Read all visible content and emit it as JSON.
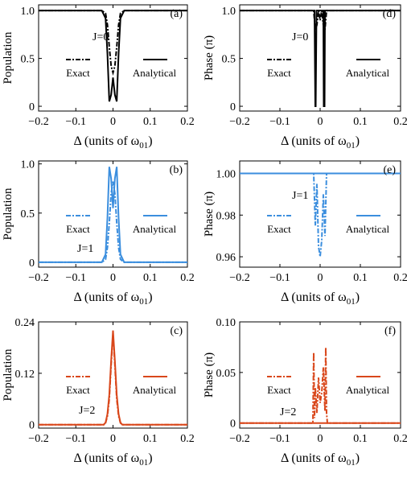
{
  "chart_data": [
    {
      "panel": "(a)",
      "type": "line",
      "ylabel": "Population",
      "xlabel_prefix": "Δ (units of ω",
      "xlabel_sub": "01",
      "xlabel_suffix": ")",
      "xlim": [
        -0.2,
        0.2
      ],
      "ylim": [
        -0.05,
        1.06
      ],
      "xticks": [
        "−0.2",
        "−0.1",
        "0",
        "0.1",
        "0.2"
      ],
      "yticks": [
        {
          "v": 0,
          "label": "0"
        },
        {
          "v": 0.5,
          "label": "0.5"
        },
        {
          "v": 1,
          "label": "1.0"
        }
      ],
      "annotation": "J=0",
      "color": "#000000",
      "legend": {
        "exact": "Exact",
        "analytical": "Analytical"
      },
      "series": [
        {
          "name": "Exact",
          "style": "dashdot",
          "x": [
            -0.2,
            -0.03,
            -0.02,
            -0.015,
            -0.01,
            -0.005,
            0,
            0.005,
            0.01,
            0.015,
            0.02,
            0.03,
            0.2
          ],
          "y": [
            1,
            1,
            0.97,
            0.85,
            0.62,
            0.42,
            0.35,
            0.42,
            0.62,
            0.85,
            0.97,
            1,
            1
          ]
        },
        {
          "name": "Analytical",
          "style": "solid",
          "x": [
            -0.2,
            -0.03,
            -0.02,
            -0.015,
            -0.01,
            -0.005,
            0,
            0.005,
            0.01,
            0.015,
            0.02,
            0.03,
            0.2
          ],
          "y": [
            1,
            1,
            0.92,
            0.55,
            0.05,
            0.12,
            0.3,
            0.12,
            0.05,
            0.55,
            0.92,
            1,
            1
          ]
        }
      ]
    },
    {
      "panel": "(d)",
      "type": "line",
      "ylabel": "Phase (π)",
      "xlabel_prefix": "Δ (units of ω",
      "xlabel_sub": "01",
      "xlabel_suffix": ")",
      "xlim": [
        -0.2,
        0.2
      ],
      "ylim": [
        -0.05,
        1.06
      ],
      "xticks": [
        "−0.2",
        "−0.1",
        "0",
        "0.1",
        "0.2"
      ],
      "yticks": [
        {
          "v": 0,
          "label": "0"
        },
        {
          "v": 0.5,
          "label": "0.5"
        },
        {
          "v": 1,
          "label": "1.0"
        }
      ],
      "annotation": "J=0",
      "color": "#000000",
      "legend": {
        "exact": "Exact",
        "analytical": "Analytical"
      },
      "series": [
        {
          "name": "Exact",
          "style": "dashdot",
          "x": [
            -0.2,
            -0.016,
            -0.012,
            -0.008,
            -0.004,
            0,
            0.004,
            0.008,
            0.012,
            0.016,
            0.2
          ],
          "y": [
            1,
            1,
            0.8,
            0.85,
            1,
            0.9,
            1,
            0.85,
            0.8,
            1,
            1
          ]
        },
        {
          "name": "Analytical",
          "style": "solid",
          "x": [
            -0.2,
            -0.014,
            -0.012,
            -0.011,
            -0.009,
            -0.008,
            0.008,
            0.009,
            0.011,
            0.012,
            0.014,
            0.2
          ],
          "y": [
            1,
            1,
            0,
            0,
            1,
            1,
            1,
            0,
            0,
            1,
            1,
            1
          ]
        }
      ]
    },
    {
      "panel": "(b)",
      "type": "line",
      "ylabel": "Population",
      "xlabel_prefix": "Δ (units of ω",
      "xlabel_sub": "01",
      "xlabel_suffix": ")",
      "xlim": [
        -0.2,
        0.2
      ],
      "ylim": [
        -0.05,
        1.03
      ],
      "xticks": [
        "−0.2",
        "−0.1",
        "0",
        "0.1",
        "0.2"
      ],
      "yticks": [
        {
          "v": 0,
          "label": "0"
        },
        {
          "v": 0.5,
          "label": "0.5"
        },
        {
          "v": 1,
          "label": "1.0"
        }
      ],
      "annotation": "J=1",
      "color": "#3b8ede",
      "legend": {
        "exact": "Exact",
        "analytical": "Analytical"
      },
      "series": [
        {
          "name": "Exact",
          "style": "dashdot",
          "x": [
            -0.2,
            -0.03,
            -0.02,
            -0.015,
            -0.01,
            -0.005,
            0,
            0.005,
            0.01,
            0.015,
            0.02,
            0.03,
            0.2
          ],
          "y": [
            0,
            0,
            0.03,
            0.15,
            0.4,
            0.7,
            0.82,
            0.7,
            0.4,
            0.15,
            0.03,
            0,
            0
          ]
        },
        {
          "name": "Analytical",
          "style": "solid",
          "x": [
            -0.2,
            -0.03,
            -0.02,
            -0.015,
            -0.01,
            -0.005,
            0,
            0.005,
            0.01,
            0.015,
            0.02,
            0.03,
            0.2
          ],
          "y": [
            0,
            0,
            0.08,
            0.45,
            0.97,
            0.85,
            0.55,
            0.85,
            0.97,
            0.45,
            0.08,
            0,
            0
          ]
        }
      ]
    },
    {
      "panel": "(e)",
      "type": "line",
      "ylabel": "Phase (π)",
      "xlabel_prefix": "Δ (units of ω",
      "xlabel_sub": "01",
      "xlabel_suffix": ")",
      "xlim": [
        -0.2,
        0.2
      ],
      "ylim": [
        0.955,
        1.006
      ],
      "xticks": [
        "−0.2",
        "−0.1",
        "0",
        "0.1",
        "0.2"
      ],
      "yticks": [
        {
          "v": 0.96,
          "label": "0.96"
        },
        {
          "v": 0.98,
          "label": "0.98"
        },
        {
          "v": 1,
          "label": "1.00"
        }
      ],
      "annotation": "J=1",
      "color": "#3b8ede",
      "legend": {
        "exact": "Exact",
        "analytical": "Analytical"
      },
      "series": [
        {
          "name": "Exact",
          "style": "dashdot",
          "x": [
            -0.2,
            -0.016,
            -0.012,
            -0.008,
            -0.004,
            0,
            0.004,
            0.008,
            0.012,
            0.016,
            0.2
          ],
          "y": [
            1,
            1,
            0.975,
            0.995,
            0.965,
            0.96,
            0.968,
            0.99,
            0.97,
            1,
            1
          ]
        },
        {
          "name": "Analytical",
          "style": "solid",
          "x": [
            -0.2,
            0.2
          ],
          "y": [
            1,
            1
          ]
        }
      ]
    },
    {
      "panel": "(c)",
      "type": "line",
      "ylabel": "Population",
      "xlabel_prefix": "Δ (units of ω",
      "xlabel_sub": "01",
      "xlabel_suffix": ")",
      "xlim": [
        -0.2,
        0.2
      ],
      "ylim": [
        -0.008,
        0.24
      ],
      "xticks": [
        "−0.2",
        "−0.1",
        "0",
        "0.1",
        "0.2"
      ],
      "yticks": [
        {
          "v": 0,
          "label": "0"
        },
        {
          "v": 0.12,
          "label": "0.12"
        },
        {
          "v": 0.24,
          "label": "0.24"
        }
      ],
      "annotation": "J=2",
      "color": "#d9471b",
      "legend": {
        "exact": "Exact",
        "analytical": "Analytical"
      },
      "series": [
        {
          "name": "Exact",
          "style": "dashdot",
          "x": [
            -0.2,
            -0.025,
            -0.02,
            -0.015,
            -0.01,
            -0.005,
            0,
            0.005,
            0.01,
            0.015,
            0.02,
            0.025,
            0.2
          ],
          "y": [
            0,
            0,
            0.004,
            0.02,
            0.06,
            0.14,
            0.21,
            0.14,
            0.06,
            0.02,
            0.004,
            0,
            0
          ]
        },
        {
          "name": "Analytical",
          "style": "solid",
          "x": [
            -0.2,
            -0.025,
            -0.02,
            -0.015,
            -0.01,
            -0.005,
            0,
            0.005,
            0.01,
            0.015,
            0.02,
            0.025,
            0.2
          ],
          "y": [
            0,
            0,
            0.005,
            0.025,
            0.07,
            0.15,
            0.22,
            0.15,
            0.07,
            0.025,
            0.005,
            0,
            0
          ]
        }
      ]
    },
    {
      "panel": "(f)",
      "type": "line",
      "ylabel": "Phase (π)",
      "xlabel_prefix": "Δ (units of ω",
      "xlabel_sub": "01",
      "xlabel_suffix": ")",
      "xlim": [
        -0.2,
        0.2
      ],
      "ylim": [
        -0.005,
        0.1
      ],
      "xticks": [
        "−0.2",
        "−0.1",
        "0",
        "0.1",
        "0.2"
      ],
      "yticks": [
        {
          "v": 0,
          "label": "0"
        },
        {
          "v": 0.05,
          "label": "0.05"
        },
        {
          "v": 0.1,
          "label": "0.10"
        }
      ],
      "annotation": "J=2",
      "color": "#d9471b",
      "legend": {
        "exact": "Exact",
        "analytical": "Analytical"
      },
      "series": [
        {
          "name": "Exact",
          "style": "dashdot",
          "x": [
            -0.2,
            -0.018,
            -0.016,
            -0.014,
            -0.012,
            -0.008,
            -0.004,
            0,
            0.004,
            0.008,
            0.012,
            0.014,
            0.016,
            0.018,
            0.2
          ],
          "y": [
            0,
            0,
            0.07,
            0.005,
            0.035,
            0.01,
            0.045,
            0.02,
            0.03,
            0.055,
            0.012,
            0.075,
            0.01,
            0,
            0
          ]
        },
        {
          "name": "Analytical",
          "style": "solid",
          "x": [
            -0.2,
            0.2
          ],
          "y": [
            0,
            0
          ]
        }
      ]
    }
  ]
}
